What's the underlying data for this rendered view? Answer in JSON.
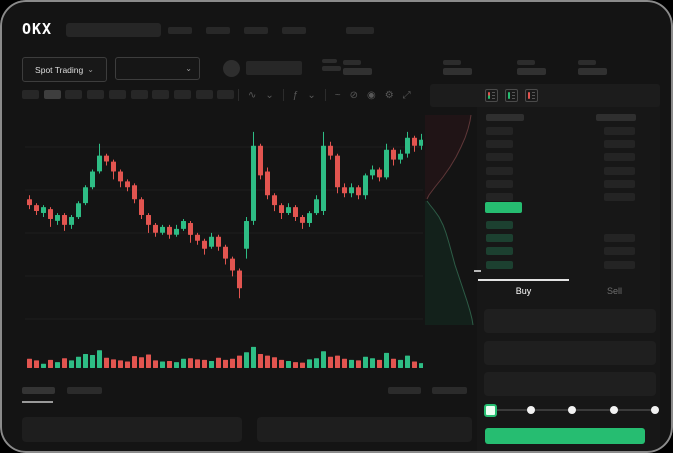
{
  "window": {
    "logo": "OKX"
  },
  "header": {
    "nav_item_count": 5
  },
  "market_bar": {
    "market_type_label": "Spot Trading",
    "chevron": "⌄",
    "stat_group_count": 4
  },
  "chart_toolbar": {
    "timeframe_count": 10,
    "selected_timeframe_index": 1,
    "icons": [
      {
        "name": "chart-type-icon",
        "glyph": "∿"
      },
      {
        "name": "chart-type-chevron-icon",
        "glyph": "⌄"
      },
      {
        "name": "indicators-icon",
        "glyph": "ƒ"
      },
      {
        "name": "indicators-chevron-icon",
        "glyph": "⌄"
      },
      {
        "name": "line-tool-icon",
        "glyph": "~"
      },
      {
        "name": "measure-icon",
        "glyph": "⊘"
      },
      {
        "name": "camera-icon",
        "glyph": "◉"
      },
      {
        "name": "chart-settings-icon",
        "glyph": "⚙"
      },
      {
        "name": "fullscreen-icon",
        "glyph": "⤢"
      }
    ]
  },
  "orderbook": {
    "view_modes": [
      "combined",
      "bids-only",
      "asks-only"
    ],
    "ask_row_count": 6,
    "bid_row_count": 4,
    "colors": {
      "bid_bar": "#1c4030",
      "ask_bar": "#242424",
      "price_bar": "#26bd71"
    }
  },
  "trade_panel": {
    "tabs": {
      "buy_label": "Buy",
      "sell_label": "Sell",
      "active": "Buy"
    },
    "field_count": 3,
    "slider": {
      "step_count": 5,
      "active_step": 0
    },
    "submit_color": "#26bd71"
  },
  "bottom_bar": {
    "tab_count": 2,
    "active_tab_index": 0,
    "right_item_count": 2,
    "panel_count": 2
  },
  "chart_data": {
    "type": "candlestick",
    "title": "",
    "axes_labeled": false,
    "units": "normalized price 0-100 and volume 0-100, estimated from pixels (no axis labels visible)",
    "grid": true,
    "up_color": "#2ebd85",
    "down_color": "#e25550",
    "columns": [
      "open",
      "high",
      "low",
      "close"
    ],
    "candles": [
      [
        60,
        62,
        55,
        57
      ],
      [
        57,
        58,
        52,
        54
      ],
      [
        53,
        57,
        51,
        56
      ],
      [
        55,
        56,
        46,
        50
      ],
      [
        49,
        53,
        47,
        52
      ],
      [
        52,
        53,
        44,
        47
      ],
      [
        47,
        52,
        45,
        51
      ],
      [
        51,
        59,
        50,
        58
      ],
      [
        58,
        67,
        57,
        66
      ],
      [
        66,
        75,
        65,
        74
      ],
      [
        74,
        88,
        73,
        82
      ],
      [
        82,
        83,
        77,
        79
      ],
      [
        79,
        80,
        70,
        74
      ],
      [
        74,
        75,
        66,
        69
      ],
      [
        69,
        70,
        64,
        66
      ],
      [
        67,
        68,
        58,
        60
      ],
      [
        60,
        61,
        50,
        52
      ],
      [
        52,
        53,
        43,
        47
      ],
      [
        47,
        48,
        41,
        43
      ],
      [
        43,
        47,
        42,
        46
      ],
      [
        46,
        47,
        40,
        42
      ],
      [
        42,
        47,
        41,
        45
      ],
      [
        45,
        50,
        44,
        49
      ],
      [
        48,
        49,
        38,
        42
      ],
      [
        42,
        43,
        37,
        39
      ],
      [
        39,
        40,
        32,
        35
      ],
      [
        36,
        43,
        35,
        41
      ],
      [
        41,
        42,
        34,
        36
      ],
      [
        36,
        37,
        27,
        30
      ],
      [
        30,
        31,
        21,
        24
      ],
      [
        24,
        25,
        10,
        15
      ],
      [
        35,
        51,
        30,
        49
      ],
      [
        49,
        94,
        47,
        87
      ],
      [
        87,
        88,
        70,
        72
      ],
      [
        74,
        76,
        60,
        62
      ],
      [
        62,
        63,
        54,
        57
      ],
      [
        57,
        58,
        50,
        53
      ],
      [
        53,
        58,
        52,
        56
      ],
      [
        56,
        57,
        49,
        51
      ],
      [
        51,
        52,
        45,
        48
      ],
      [
        48,
        54,
        46,
        53
      ],
      [
        53,
        62,
        52,
        60
      ],
      [
        54,
        94,
        52,
        87
      ],
      [
        87,
        89,
        80,
        82
      ],
      [
        82,
        83,
        63,
        66
      ],
      [
        66,
        68,
        61,
        63
      ],
      [
        63,
        68,
        61,
        66
      ],
      [
        66,
        67,
        60,
        62
      ],
      [
        62,
        73,
        60,
        72
      ],
      [
        72,
        77,
        70,
        75
      ],
      [
        75,
        76,
        69,
        71
      ],
      [
        71,
        88,
        70,
        85
      ],
      [
        85,
        86,
        77,
        80
      ],
      [
        80,
        85,
        78,
        83
      ],
      [
        83,
        94,
        81,
        91
      ],
      [
        91,
        92,
        84,
        87
      ],
      [
        87,
        93,
        85,
        90
      ]
    ],
    "volume": [
      34,
      28,
      16,
      30,
      22,
      36,
      28,
      42,
      52,
      48,
      66,
      38,
      32,
      28,
      24,
      44,
      40,
      50,
      28,
      24,
      26,
      22,
      34,
      36,
      32,
      30,
      26,
      38,
      30,
      34,
      46,
      58,
      78,
      52,
      46,
      40,
      30,
      26,
      22,
      20,
      32,
      36,
      62,
      42,
      46,
      34,
      30,
      28,
      42,
      36,
      30,
      56,
      34,
      30,
      46,
      24,
      18
    ],
    "depth": {
      "orientation": "vertical",
      "asks_line": [
        [
          46,
          2
        ],
        [
          45,
          8
        ],
        [
          43,
          16
        ],
        [
          40,
          25
        ],
        [
          36,
          34
        ],
        [
          31,
          44
        ],
        [
          25,
          54
        ],
        [
          18,
          64
        ],
        [
          10,
          74
        ],
        [
          4,
          82
        ],
        [
          2,
          86
        ]
      ],
      "bids_line": [
        [
          2,
          88
        ],
        [
          5,
          92
        ],
        [
          9,
          97
        ],
        [
          14,
          104
        ],
        [
          18,
          112
        ],
        [
          21,
          120
        ],
        [
          24,
          130
        ],
        [
          27,
          141
        ],
        [
          30,
          152
        ],
        [
          34,
          164
        ],
        [
          38,
          176
        ],
        [
          42,
          188
        ],
        [
          45,
          198
        ],
        [
          47,
          206
        ],
        [
          48,
          212
        ]
      ],
      "box": [
        56,
        214
      ],
      "ask_fill": "#201416",
      "ask_stroke": "#5f3738",
      "bid_fill": "#13211b",
      "bid_stroke": "#2d5c46"
    }
  }
}
